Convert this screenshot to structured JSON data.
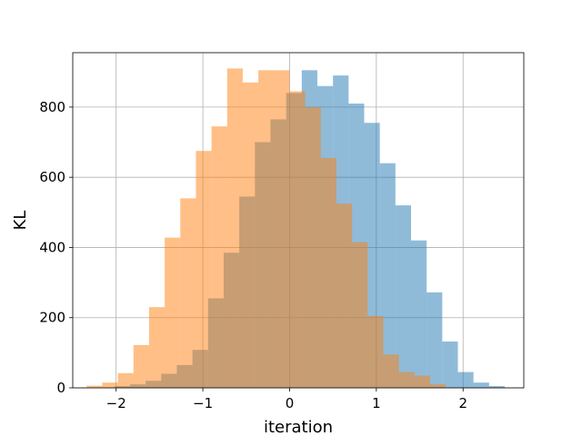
{
  "chart_data": {
    "type": "bar",
    "chart_subtype": "overlapping-histogram",
    "title": "",
    "xlabel": "iteration",
    "ylabel": "KL",
    "xlim": [
      -2.5,
      2.7
    ],
    "ylim": [
      0,
      955
    ],
    "grid": true,
    "legend": "none",
    "xticks": [
      -2,
      -1,
      0,
      1,
      2
    ],
    "xtick_labels": [
      "−2",
      "−1",
      "0",
      "1",
      "2"
    ],
    "yticks": [
      0,
      200,
      400,
      600,
      800
    ],
    "ytick_labels": [
      "0",
      "200",
      "400",
      "600",
      "800"
    ],
    "series": [
      {
        "color": "#1f77b4",
        "alpha": 0.5,
        "bin_start": -2.02,
        "bin_width": 0.18,
        "values": [
          5,
          10,
          20,
          40,
          65,
          108,
          255,
          385,
          545,
          700,
          765,
          840,
          905,
          860,
          890,
          810,
          755,
          640,
          520,
          420,
          272,
          132,
          45,
          15,
          5
        ]
      },
      {
        "color": "#ff7f0e",
        "alpha": 0.5,
        "bin_start": -2.34,
        "bin_width": 0.18,
        "values": [
          6,
          15,
          42,
          122,
          230,
          428,
          540,
          675,
          745,
          910,
          870,
          905,
          905,
          845,
          800,
          655,
          525,
          415,
          205,
          95,
          45,
          35,
          10
        ]
      }
    ]
  }
}
